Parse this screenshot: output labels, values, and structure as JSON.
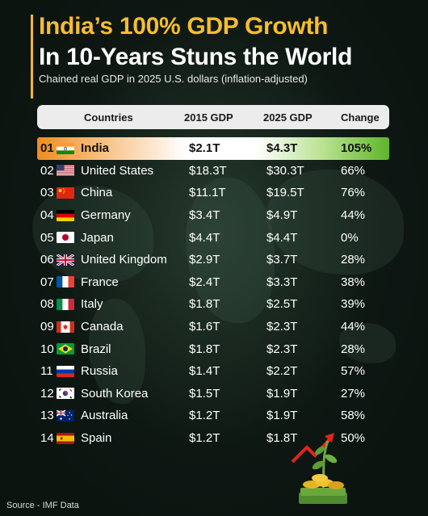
{
  "title_line1": "India’s 100% GDP Growth",
  "title_line2": "In 10-Years Stuns the World",
  "subtitle": "Chained real GDP in 2025 U.S. dollars (inflation-adjusted)",
  "columns": {
    "countries": "Countries",
    "gdp2015": "2015 GDP",
    "gdp2025": "2025 GDP",
    "change": "Change"
  },
  "rows": [
    {
      "rank": "01",
      "country": "India",
      "flag": "india-flag",
      "gdp2015": "$2.1T",
      "gdp2025": "$4.3T",
      "change": "105%"
    },
    {
      "rank": "02",
      "country": "United States",
      "flag": "usa-flag",
      "gdp2015": "$18.3T",
      "gdp2025": "$30.3T",
      "change": "66%"
    },
    {
      "rank": "03",
      "country": "China",
      "flag": "china-flag",
      "gdp2015": "$11.1T",
      "gdp2025": "$19.5T",
      "change": "76%"
    },
    {
      "rank": "04",
      "country": "Germany",
      "flag": "germany-flag",
      "gdp2015": "$3.4T",
      "gdp2025": "$4.9T",
      "change": "44%"
    },
    {
      "rank": "05",
      "country": "Japan",
      "flag": "japan-flag",
      "gdp2015": "$4.4T",
      "gdp2025": "$4.4T",
      "change": "0%"
    },
    {
      "rank": "06",
      "country": "United Kingdom",
      "flag": "uk-flag",
      "gdp2015": "$2.9T",
      "gdp2025": "$3.7T",
      "change": "28%"
    },
    {
      "rank": "07",
      "country": "France",
      "flag": "france-flag",
      "gdp2015": "$2.4T",
      "gdp2025": "$3.3T",
      "change": "38%"
    },
    {
      "rank": "08",
      "country": "Italy",
      "flag": "italy-flag",
      "gdp2015": "$1.8T",
      "gdp2025": "$2.5T",
      "change": "39%"
    },
    {
      "rank": "09",
      "country": "Canada",
      "flag": "canada-flag",
      "gdp2015": "$1.6T",
      "gdp2025": "$2.3T",
      "change": "44%"
    },
    {
      "rank": "10",
      "country": "Brazil",
      "flag": "brazil-flag",
      "gdp2015": "$1.8T",
      "gdp2025": "$2.3T",
      "change": "28%"
    },
    {
      "rank": "11",
      "country": "Russia",
      "flag": "russia-flag",
      "gdp2015": "$1.4T",
      "gdp2025": "$2.2T",
      "change": "57%"
    },
    {
      "rank": "12",
      "country": "South Korea",
      "flag": "south-korea-flag",
      "gdp2015": "$1.5T",
      "gdp2025": "$1.9T",
      "change": "27%"
    },
    {
      "rank": "13",
      "country": "Australia",
      "flag": "australia-flag",
      "gdp2015": "$1.2T",
      "gdp2025": "$1.9T",
      "change": "58%"
    },
    {
      "rank": "14",
      "country": "Spain",
      "flag": "spain-flag",
      "gdp2015": "$1.2T",
      "gdp2025": "$1.8T",
      "change": "50%"
    }
  ],
  "source": "Source - IMF Data",
  "colors": {
    "accent": "#f7bd2e",
    "background": "#0c1410",
    "highlight_start": "#ef8c1e",
    "highlight_end": "#5fb52a"
  }
}
